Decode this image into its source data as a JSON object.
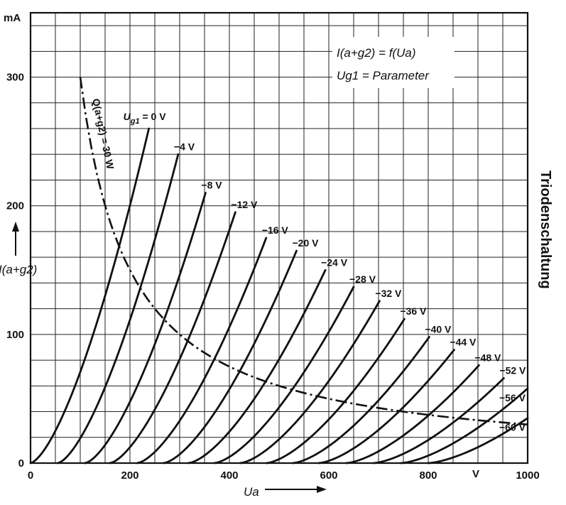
{
  "chart_data": {
    "type": "line",
    "title_line1": "I(a+g2) = f(Ua)",
    "title_line2": "Ug1 = Parameter",
    "side_label": "Triodenschaltung",
    "xlabel": "Ua",
    "x_unit": "V",
    "ylabel": "I(a+g2)",
    "y_unit": "mA",
    "xlim": [
      0,
      1000
    ],
    "ylim": [
      0,
      350
    ],
    "x_ticks": [
      "0",
      "200",
      "400",
      "600",
      "800",
      "1000"
    ],
    "y_ticks": [
      "0",
      "100",
      "200",
      "300"
    ],
    "grid": true,
    "series": [
      {
        "name": "Ug1 = 0 V",
        "label": "0 V",
        "v0": 0,
        "v_end": 238,
        "i_end": 260
      },
      {
        "name": "-4 V",
        "label": "−4 V",
        "v0": 55,
        "v_end": 297,
        "i_end": 240
      },
      {
        "name": "-8 V",
        "label": "−8 V",
        "v0": 110,
        "v_end": 352,
        "i_end": 210
      },
      {
        "name": "-12 V",
        "label": "−12 V",
        "v0": 160,
        "v_end": 412,
        "i_end": 195
      },
      {
        "name": "-16 V",
        "label": "−16 V",
        "v0": 215,
        "v_end": 474,
        "i_end": 175
      },
      {
        "name": "-20 V",
        "label": "−20 V",
        "v0": 268,
        "v_end": 535,
        "i_end": 165
      },
      {
        "name": "-24 V",
        "label": "−24 V",
        "v0": 318,
        "v_end": 593,
        "i_end": 150
      },
      {
        "name": "-28 V",
        "label": "−28 V",
        "v0": 370,
        "v_end": 650,
        "i_end": 137
      },
      {
        "name": "-32 V",
        "label": "−32 V",
        "v0": 422,
        "v_end": 702,
        "i_end": 126
      },
      {
        "name": "-36 V",
        "label": "−36 V",
        "v0": 475,
        "v_end": 752,
        "i_end": 112
      },
      {
        "name": "-40 V",
        "label": "−40 V",
        "v0": 528,
        "v_end": 802,
        "i_end": 98
      },
      {
        "name": "-44 V",
        "label": "−44 V",
        "v0": 580,
        "v_end": 852,
        "i_end": 88
      },
      {
        "name": "-48 V",
        "label": "−48 V",
        "v0": 635,
        "v_end": 902,
        "i_end": 76
      },
      {
        "name": "-52 V",
        "label": "−52 V",
        "v0": 690,
        "v_end": 952,
        "i_end": 66
      },
      {
        "name": "-56 V",
        "label": "−56 V",
        "v0": 745,
        "v_end": 1000,
        "i_end": 58
      },
      {
        "name": "-60 V",
        "label": "−60 V",
        "v0": 800,
        "v_end": 1000,
        "i_end": 35
      }
    ],
    "power_limit": {
      "label": "Q(a+g2) = 30 W",
      "watts": 30,
      "v_from": 100,
      "v_to": 1000
    }
  }
}
